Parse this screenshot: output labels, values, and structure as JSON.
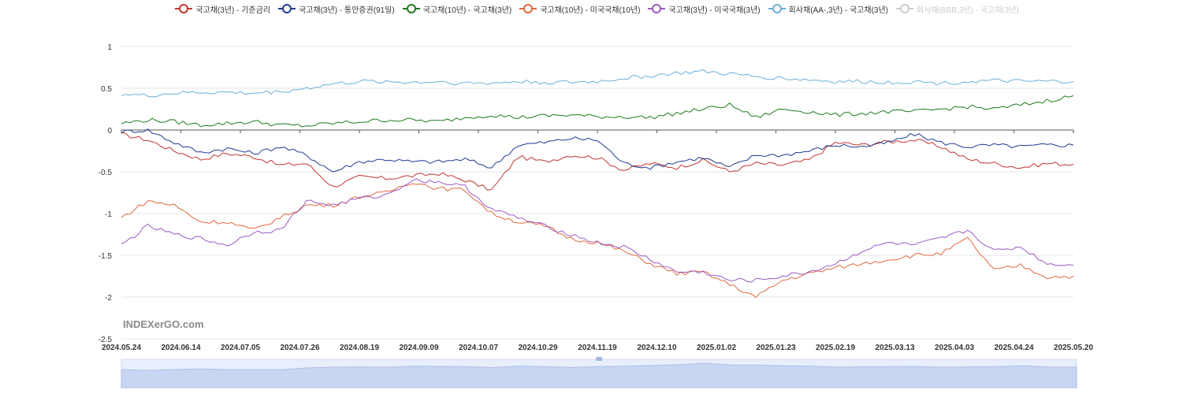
{
  "legend": [
    {
      "name": "국고채(3년) - 기준금리",
      "color": "#c23531",
      "active": true
    },
    {
      "name": "국고채(3년) - 통안증권(91일)",
      "color": "#1f3a93",
      "active": true
    },
    {
      "name": "국고채(10년) - 국고채(3년)",
      "color": "#1e7b1e",
      "active": true
    },
    {
      "name": "국고채(10년) - 미국국채(10년)",
      "color": "#e0693d",
      "active": true
    },
    {
      "name": "국고채(3년) - 미국국채(3년)",
      "color": "#9b59c4",
      "active": true
    },
    {
      "name": "회사채(AA-,3년) - 국고채(3년)",
      "color": "#6ab0d8",
      "active": true
    },
    {
      "name": "회사채(BBB,3년) - 국고채(3년)",
      "color": "#cccccc",
      "active": false
    }
  ],
  "watermark": "INDEXerGO.com",
  "chart_data": {
    "type": "line",
    "x_ticks": [
      "2024.05.24",
      "2024.06.14",
      "2024.07.05",
      "2024.07.26",
      "2024.08.19",
      "2024.09.09",
      "2024.10.07",
      "2024.10.29",
      "2024.11.19",
      "2024.12.10",
      "2025.01.02",
      "2025.01.23",
      "2025.02.19",
      "2025.03.13",
      "2025.04.03",
      "2025.04.24",
      "2025.05.20"
    ],
    "y_ticks": [
      1,
      0.5,
      0,
      -0.5,
      -1,
      -1.5,
      -2,
      -2.5
    ],
    "ylim": [
      -2.5,
      1
    ],
    "grid": true,
    "legend_position": "top",
    "series": [
      {
        "name": "국고채(3년) - 기준금리",
        "color": "#c23531",
        "values": [
          -0.05,
          -0.12,
          -0.25,
          -0.35,
          -0.28,
          -0.32,
          -0.42,
          -0.4,
          -0.68,
          -0.56,
          -0.58,
          -0.55,
          -0.52,
          -0.6,
          -0.72,
          -0.32,
          -0.38,
          -0.3,
          -0.33,
          -0.48,
          -0.4,
          -0.45,
          -0.36,
          -0.5,
          -0.4,
          -0.42,
          -0.36,
          -0.15,
          -0.18,
          -0.14,
          -0.12,
          -0.2,
          -0.35,
          -0.4,
          -0.45,
          -0.4,
          -0.41
        ]
      },
      {
        "name": "국고채(3년) - 통안증권(91일)",
        "color": "#1f3a93",
        "values": [
          -0.02,
          0.0,
          -0.15,
          -0.27,
          -0.22,
          -0.28,
          -0.2,
          -0.3,
          -0.5,
          -0.38,
          -0.35,
          -0.38,
          -0.38,
          -0.35,
          -0.45,
          -0.18,
          -0.15,
          -0.1,
          -0.12,
          -0.4,
          -0.45,
          -0.38,
          -0.33,
          -0.45,
          -0.3,
          -0.3,
          -0.25,
          -0.18,
          -0.2,
          -0.15,
          -0.05,
          -0.15,
          -0.2,
          -0.18,
          -0.2,
          -0.18,
          -0.18
        ]
      },
      {
        "name": "국고채(10년) - 국고채(3년)",
        "color": "#1e7b1e",
        "values": [
          0.08,
          0.12,
          0.1,
          0.06,
          0.08,
          0.1,
          0.06,
          0.05,
          0.08,
          0.1,
          0.12,
          0.12,
          0.1,
          0.15,
          0.18,
          0.15,
          0.17,
          0.18,
          0.16,
          0.16,
          0.15,
          0.2,
          0.25,
          0.3,
          0.15,
          0.25,
          0.22,
          0.18,
          0.2,
          0.22,
          0.22,
          0.25,
          0.28,
          0.25,
          0.3,
          0.35,
          0.41
        ]
      },
      {
        "name": "국고채(10년) - 미국국채(10년)",
        "color": "#e0693d",
        "values": [
          -1.05,
          -0.85,
          -0.9,
          -1.1,
          -1.1,
          -1.2,
          -1.05,
          -0.9,
          -0.9,
          -0.8,
          -0.75,
          -0.62,
          -0.7,
          -0.72,
          -1.0,
          -1.1,
          -1.15,
          -1.3,
          -1.35,
          -1.45,
          -1.6,
          -1.72,
          -1.7,
          -1.85,
          -2.0,
          -1.8,
          -1.72,
          -1.65,
          -1.6,
          -1.55,
          -1.5,
          -1.48,
          -1.3,
          -1.68,
          -1.62,
          -1.76,
          -1.75
        ]
      },
      {
        "name": "국고채(3년) - 미국국채(3년)",
        "color": "#9b59c4",
        "values": [
          -1.38,
          -1.15,
          -1.25,
          -1.3,
          -1.38,
          -1.22,
          -1.2,
          -0.85,
          -0.9,
          -0.82,
          -0.78,
          -0.6,
          -0.62,
          -0.68,
          -0.95,
          -1.05,
          -1.15,
          -1.25,
          -1.35,
          -1.4,
          -1.55,
          -1.7,
          -1.7,
          -1.8,
          -1.8,
          -1.75,
          -1.7,
          -1.6,
          -1.45,
          -1.35,
          -1.38,
          -1.3,
          -1.2,
          -1.45,
          -1.4,
          -1.6,
          -1.62
        ]
      },
      {
        "name": "회사채(AA-,3년) - 국고채(3년)",
        "color": "#6ab0d8",
        "values": [
          0.43,
          0.41,
          0.44,
          0.45,
          0.45,
          0.44,
          0.46,
          0.5,
          0.55,
          0.58,
          0.58,
          0.57,
          0.58,
          0.56,
          0.56,
          0.58,
          0.57,
          0.57,
          0.58,
          0.62,
          0.65,
          0.68,
          0.7,
          0.67,
          0.64,
          0.62,
          0.6,
          0.58,
          0.58,
          0.57,
          0.58,
          0.56,
          0.58,
          0.59,
          0.58,
          0.58,
          0.58
        ]
      }
    ]
  }
}
